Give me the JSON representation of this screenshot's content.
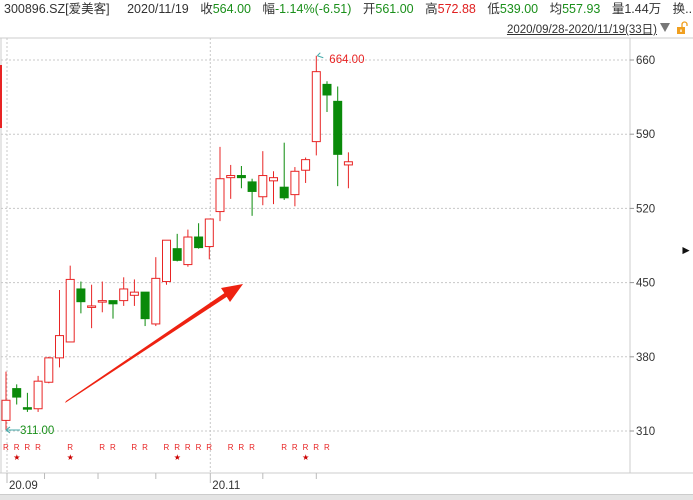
{
  "header": {
    "symbol": "300896.SZ[爱美客]",
    "date": "2020/11/19",
    "close_label": "收",
    "close": "564.00",
    "change_label": "幅",
    "change": "-1.14%(-6.51)",
    "open_label": "开",
    "open": "561.00",
    "high_label": "高",
    "high": "572.88",
    "low_label": "低",
    "low": "539.00",
    "avg_label": "均",
    "avg": "557.93",
    "vol_label": "量",
    "vol": "1.44万",
    "turnover_label": "换..."
  },
  "range": "2020/09/28-2020/11/19(33日)",
  "colors": {
    "up": "#e82424",
    "down": "#0a8a0a",
    "arrow": "#ee2211",
    "grid": "#c8c8c8"
  },
  "chart_data": {
    "type": "candlestick",
    "y_ticks": [
      "660",
      "590",
      "520",
      "450",
      "380",
      "310"
    ],
    "ylim": [
      290,
      675
    ],
    "x_labels": [
      {
        "label": "20.09",
        "day": 0
      },
      {
        "label": "20.11",
        "day": 19
      }
    ],
    "max_label": "664.00",
    "min_label": "311.00",
    "candles": [
      [
        320,
        339,
        366,
        311
      ],
      [
        350,
        342,
        354,
        335
      ],
      [
        332,
        331,
        346,
        328
      ],
      [
        331,
        357,
        362,
        328
      ],
      [
        356,
        379,
        380,
        355
      ],
      [
        379,
        400,
        443,
        370
      ],
      [
        394,
        453,
        466,
        394
      ],
      [
        444,
        432,
        451,
        421
      ],
      [
        428,
        428,
        448,
        407
      ],
      [
        433,
        433,
        451,
        422
      ],
      [
        433,
        430,
        433,
        416
      ],
      [
        433,
        444,
        455,
        428
      ],
      [
        438,
        441,
        453,
        428
      ],
      [
        441,
        416,
        441,
        409
      ],
      [
        411,
        454,
        474,
        409
      ],
      [
        451,
        490,
        490,
        448
      ],
      [
        482,
        471,
        496,
        470
      ],
      [
        467,
        493,
        500,
        465
      ],
      [
        493,
        483,
        506,
        482
      ],
      [
        484,
        510,
        510,
        472
      ],
      [
        517,
        548,
        578,
        508
      ],
      [
        549,
        551,
        561,
        529
      ],
      [
        551,
        549,
        560,
        539
      ],
      [
        545,
        536,
        548,
        513
      ],
      [
        531,
        551,
        574,
        523
      ],
      [
        546,
        549,
        555,
        524
      ],
      [
        540,
        530,
        582,
        528
      ],
      [
        533,
        555,
        559,
        522
      ],
      [
        556,
        566,
        568,
        544
      ],
      [
        583,
        649,
        664,
        570
      ],
      [
        637,
        627,
        640,
        611
      ],
      [
        621,
        571,
        635,
        541
      ],
      [
        561,
        564,
        572.88,
        539
      ]
    ],
    "r_flag_label": "R",
    "r_flag_days": [
      0,
      1,
      2,
      3,
      6,
      9,
      10,
      12,
      13,
      15,
      16,
      17,
      18,
      19,
      21,
      22,
      23,
      26,
      27,
      28,
      29,
      30
    ],
    "star_days": [
      1,
      6,
      16,
      28
    ],
    "star_label": "★"
  }
}
